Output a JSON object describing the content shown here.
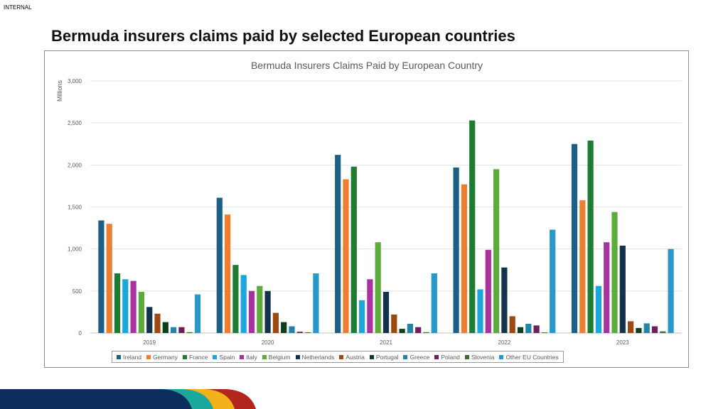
{
  "page": {
    "classification": "INTERNAL",
    "title": "Bermuda insurers claims paid by selected European countries"
  },
  "chart_data": {
    "type": "bar",
    "title": "Bermuda Insurers Claims Paid by European Country",
    "ylabel": "Millions",
    "xlabel": "",
    "ylim": [
      0,
      3000
    ],
    "yticks": [
      0,
      500,
      1000,
      1500,
      2000,
      2500,
      3000
    ],
    "ytick_labels": [
      "0",
      "500",
      "1,000",
      "1,500",
      "2,000",
      "2,500",
      "3,000"
    ],
    "grid": true,
    "legend": "bottom",
    "categories": [
      "2019",
      "2020",
      "2021",
      "2022",
      "2023"
    ],
    "series": [
      {
        "name": "Ireland",
        "color": "#1f5f86",
        "values": [
          1340,
          1610,
          2120,
          1970,
          2250
        ]
      },
      {
        "name": "Germany",
        "color": "#ed7d31",
        "values": [
          1300,
          1410,
          1830,
          1770,
          1580
        ]
      },
      {
        "name": "France",
        "color": "#1e7b34",
        "values": [
          710,
          810,
          1980,
          2530,
          2290
        ]
      },
      {
        "name": "Spain",
        "color": "#1ea6dc",
        "values": [
          640,
          690,
          390,
          520,
          560
        ]
      },
      {
        "name": "Italy",
        "color": "#a8329e",
        "values": [
          620,
          500,
          640,
          990,
          1080
        ]
      },
      {
        "name": "Belgium",
        "color": "#5dab3c",
        "values": [
          490,
          560,
          1080,
          1950,
          1440
        ]
      },
      {
        "name": "Netherlands",
        "color": "#14324a",
        "values": [
          310,
          500,
          490,
          780,
          1040
        ]
      },
      {
        "name": "Austria",
        "color": "#9c4a12",
        "values": [
          230,
          240,
          220,
          200,
          140
        ]
      },
      {
        "name": "Portugal",
        "color": "#0d3f1f",
        "values": [
          130,
          130,
          50,
          70,
          60
        ]
      },
      {
        "name": "Greece",
        "color": "#2683a8",
        "values": [
          70,
          80,
          110,
          110,
          115
        ]
      },
      {
        "name": "Poland",
        "color": "#6b1f5e",
        "values": [
          70,
          15,
          70,
          90,
          80
        ]
      },
      {
        "name": "Slovenia",
        "color": "#3f6e2a",
        "values": [
          10,
          8,
          10,
          8,
          20
        ]
      },
      {
        "name": "Other EU Countries",
        "color": "#2a97c9",
        "values": [
          460,
          710,
          710,
          1230,
          1000
        ]
      }
    ]
  }
}
